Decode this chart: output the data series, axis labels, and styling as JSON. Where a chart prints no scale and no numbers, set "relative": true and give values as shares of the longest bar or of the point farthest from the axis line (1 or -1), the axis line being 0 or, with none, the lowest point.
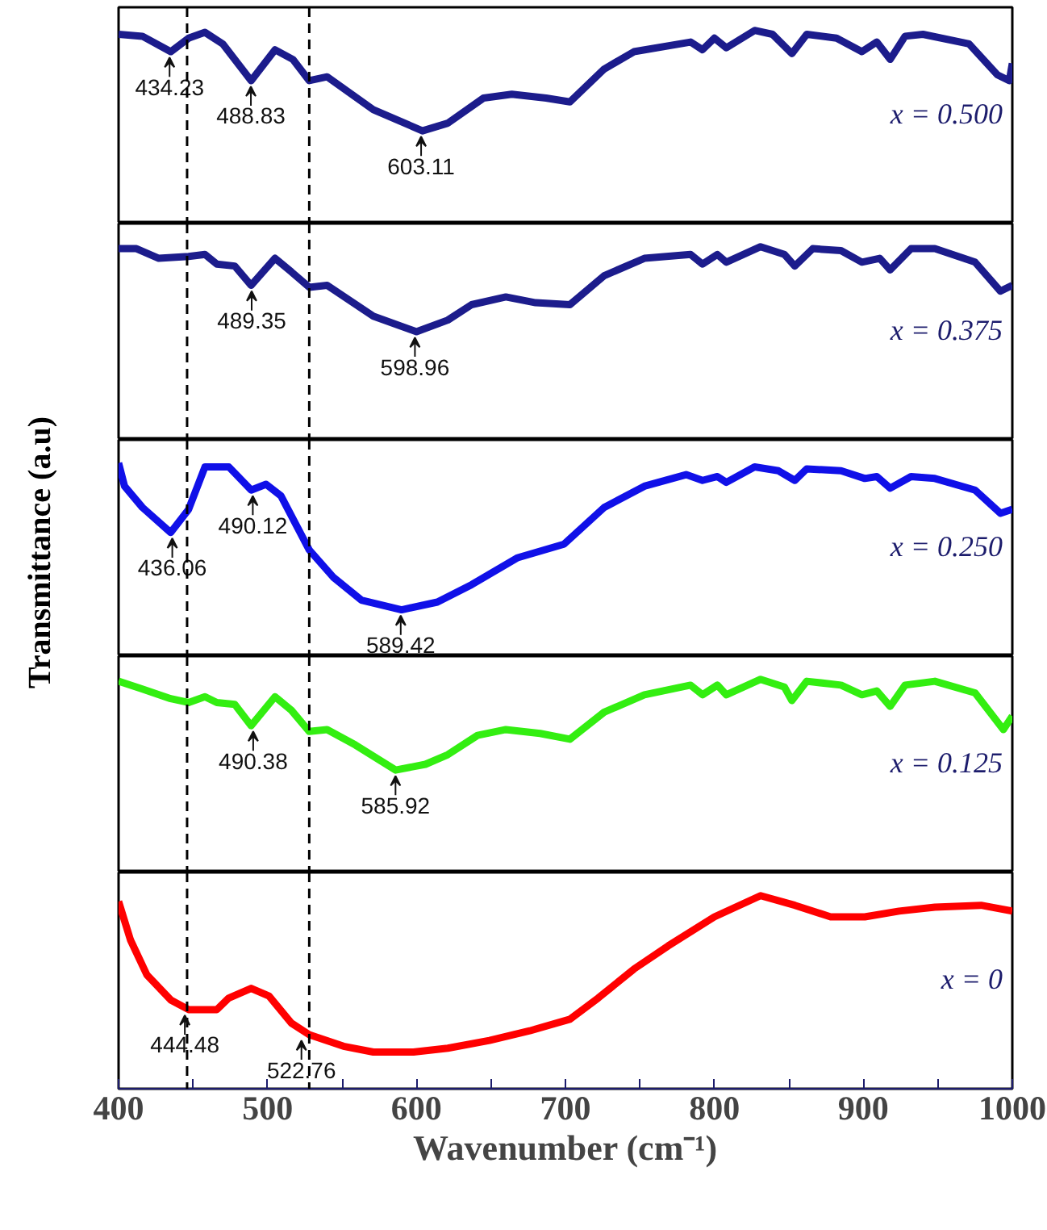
{
  "chart_data": [
    {
      "type": "line",
      "relative": true,
      "xlim": [
        400,
        1000
      ],
      "tick_labels": false,
      "x": [
        400,
        416,
        435,
        447,
        458,
        470,
        489,
        505,
        517,
        528,
        540,
        571,
        604,
        621,
        645,
        664,
        687,
        703,
        726,
        746,
        784,
        792,
        800,
        808,
        827,
        839,
        852,
        862,
        882,
        899,
        909,
        918,
        928,
        940,
        971,
        990,
        998,
        1000
      ],
      "series": [
        {
          "name": "x = 0.500",
          "color": "#1c1c8c",
          "values": [
            0.98,
            0.97,
            0.89,
            0.96,
            0.99,
            0.93,
            0.74,
            0.9,
            0.85,
            0.74,
            0.76,
            0.59,
            0.48,
            0.52,
            0.65,
            0.67,
            0.65,
            0.63,
            0.8,
            0.89,
            0.94,
            0.9,
            0.96,
            0.91,
            1,
            0.98,
            0.88,
            0.98,
            0.96,
            0.89,
            0.94,
            0.85,
            0.97,
            0.98,
            0.93,
            0.77,
            0.74,
            0.83
          ]
        }
      ],
      "annotations": [
        {
          "text": "434.23",
          "x": 434.23,
          "y": 0.89
        },
        {
          "text": "488.83",
          "x": 488.83,
          "y": 0.74
        },
        {
          "text": "603.11",
          "x": 603.11,
          "y": 0.48
        }
      ],
      "ref_lines": [
        {
          "axis": "x",
          "value": 446,
          "color": "#000000",
          "line_style": "dashed"
        },
        {
          "axis": "x",
          "value": 528,
          "color": "#000000",
          "line_style": "dashed"
        }
      ]
    },
    {
      "type": "line",
      "relative": true,
      "xlim": [
        400,
        1000
      ],
      "tick_labels": false,
      "x": [
        400,
        412,
        427,
        447,
        458,
        466,
        478,
        489,
        505,
        516,
        528,
        540,
        571,
        600,
        621,
        637,
        660,
        680,
        703,
        726,
        753,
        784,
        792,
        802,
        808,
        831,
        847,
        854,
        866,
        885,
        899,
        911,
        918,
        932,
        948,
        975,
        992,
        1000
      ],
      "series": [
        {
          "name": "x = 0.375",
          "color": "#1c1c8c",
          "values": [
            0.99,
            0.99,
            0.94,
            0.95,
            0.96,
            0.91,
            0.9,
            0.8,
            0.94,
            0.87,
            0.79,
            0.8,
            0.64,
            0.56,
            0.62,
            0.7,
            0.74,
            0.71,
            0.7,
            0.85,
            0.94,
            0.96,
            0.91,
            0.96,
            0.92,
            1,
            0.96,
            0.9,
            0.99,
            0.98,
            0.92,
            0.94,
            0.88,
            0.99,
            0.99,
            0.92,
            0.77,
            0.8
          ]
        }
      ],
      "annotations": [
        {
          "text": "489.35",
          "x": 489.35,
          "y": 0.8
        },
        {
          "text": "598.96",
          "x": 598.96,
          "y": 0.56
        }
      ],
      "ref_lines": [
        {
          "axis": "x",
          "value": 446,
          "color": "#000000",
          "line_style": "dashed"
        },
        {
          "axis": "x",
          "value": 528,
          "color": "#000000",
          "line_style": "dashed"
        }
      ]
    },
    {
      "type": "line",
      "relative": true,
      "xlim": [
        400,
        1000
      ],
      "tick_labels": false,
      "ylabel": "Transmittance (a.u)",
      "x": [
        400,
        404,
        416,
        435,
        447,
        458,
        474,
        489,
        499,
        509,
        528,
        544,
        563,
        590,
        614,
        637,
        668,
        699,
        726,
        753,
        781,
        792,
        802,
        808,
        827,
        843,
        854,
        862,
        885,
        901,
        909,
        918,
        932,
        948,
        975,
        992,
        1000
      ],
      "series": [
        {
          "name": "x = 0.250",
          "color": "#1010e8",
          "values": [
            1,
            0.88,
            0.77,
            0.64,
            0.76,
            0.98,
            0.98,
            0.86,
            0.89,
            0.83,
            0.55,
            0.41,
            0.29,
            0.24,
            0.28,
            0.37,
            0.51,
            0.58,
            0.77,
            0.88,
            0.94,
            0.91,
            0.93,
            0.9,
            0.98,
            0.96,
            0.91,
            0.97,
            0.96,
            0.92,
            0.93,
            0.87,
            0.93,
            0.92,
            0.86,
            0.74,
            0.76
          ]
        }
      ],
      "annotations": [
        {
          "text": "436.06",
          "x": 436.06,
          "y": 0.64
        },
        {
          "text": "490.12",
          "x": 490.12,
          "y": 0.86
        },
        {
          "text": "589.42",
          "x": 589.42,
          "y": 0.24
        }
      ],
      "ref_lines": [
        {
          "axis": "x",
          "value": 446,
          "color": "#000000",
          "line_style": "dashed"
        },
        {
          "axis": "x",
          "value": 528,
          "color": "#000000",
          "line_style": "dashed"
        }
      ]
    },
    {
      "type": "line",
      "relative": true,
      "xlim": [
        400,
        1000
      ],
      "tick_labels": false,
      "x": [
        400,
        416,
        435,
        447,
        458,
        466,
        478,
        489,
        505,
        516,
        528,
        540,
        559,
        586,
        606,
        621,
        641,
        660,
        683,
        703,
        726,
        753,
        784,
        792,
        802,
        808,
        831,
        847,
        852,
        862,
        885,
        899,
        909,
        918,
        928,
        948,
        975,
        994,
        1000
      ],
      "series": [
        {
          "name": "x = 0.125",
          "color": "#33ee11",
          "values": [
            0.99,
            0.95,
            0.9,
            0.88,
            0.91,
            0.88,
            0.87,
            0.76,
            0.91,
            0.84,
            0.73,
            0.74,
            0.66,
            0.53,
            0.56,
            0.61,
            0.71,
            0.74,
            0.72,
            0.69,
            0.83,
            0.92,
            0.97,
            0.92,
            0.97,
            0.92,
            1,
            0.96,
            0.89,
            0.99,
            0.97,
            0.92,
            0.94,
            0.86,
            0.97,
            0.99,
            0.93,
            0.74,
            0.81
          ]
        }
      ],
      "annotations": [
        {
          "text": "490.38",
          "x": 490.38,
          "y": 0.76
        },
        {
          "text": "585.92",
          "x": 585.92,
          "y": 0.53
        }
      ],
      "ref_lines": [
        {
          "axis": "x",
          "value": 446,
          "color": "#000000",
          "line_style": "dashed"
        },
        {
          "axis": "x",
          "value": 528,
          "color": "#000000",
          "line_style": "dashed"
        }
      ]
    },
    {
      "type": "line",
      "relative": true,
      "xlim": [
        400,
        1000
      ],
      "xlabel": "Wavenumber (cm⁻¹)",
      "xticks": [
        400,
        {
          "value": 450,
          "label": null
        },
        500,
        {
          "value": 550,
          "label": null
        },
        600,
        {
          "value": 650,
          "label": null
        },
        700,
        {
          "value": 750,
          "label": null
        },
        800,
        {
          "value": 850,
          "label": null
        },
        900,
        {
          "value": 950,
          "label": null
        },
        1000
      ],
      "x": [
        400,
        408,
        419,
        435,
        447,
        466,
        474,
        489,
        501,
        516,
        528,
        551,
        571,
        598,
        621,
        649,
        676,
        703,
        722,
        746,
        769,
        800,
        831,
        854,
        878,
        901,
        924,
        948,
        979,
        1000
      ],
      "series": [
        {
          "name": "x = 0",
          "color": "#ff0000",
          "values": [
            0.97,
            0.77,
            0.59,
            0.46,
            0.41,
            0.41,
            0.47,
            0.52,
            0.48,
            0.34,
            0.28,
            0.22,
            0.19,
            0.19,
            0.21,
            0.25,
            0.3,
            0.36,
            0.47,
            0.62,
            0.74,
            0.89,
            1,
            0.95,
            0.89,
            0.89,
            0.92,
            0.94,
            0.95,
            0.92
          ]
        }
      ],
      "annotations": [
        {
          "text": "444.48",
          "x": 444.48,
          "y": 0.41
        },
        {
          "text": "522.76",
          "x": 522.76,
          "y": 0.28
        }
      ],
      "ref_lines": [
        {
          "axis": "x",
          "value": 446,
          "color": "#000000",
          "line_style": "dashed"
        },
        {
          "axis": "x",
          "value": 528,
          "color": "#000000",
          "line_style": "dashed"
        }
      ]
    }
  ]
}
